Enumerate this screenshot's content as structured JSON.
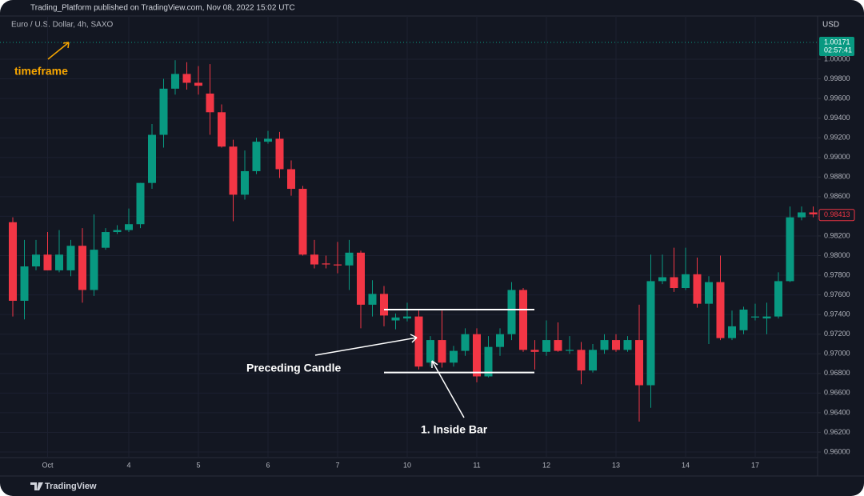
{
  "header": {
    "text": "Trading_Platform published on TradingView.com, Nov 08, 2022 15:02 UTC"
  },
  "footer": {
    "logo": "TradingView"
  },
  "chart_data": {
    "type": "candlestick",
    "symbol": "Euro / U.S. Dollar, 4h, SAXO",
    "currency": "USD",
    "up_color": "#089981",
    "down_color": "#f23645",
    "grid": true,
    "categories": [
      null,
      null,
      null,
      "Oct",
      null,
      null,
      null,
      null,
      null,
      null,
      "4",
      null,
      null,
      null,
      null,
      null,
      "5",
      null,
      null,
      null,
      null,
      null,
      "6",
      null,
      null,
      null,
      null,
      null,
      "7",
      null,
      null,
      null,
      null,
      null,
      "10",
      null,
      null,
      null,
      null,
      null,
      "11",
      null,
      null,
      null,
      null,
      null,
      "12",
      null,
      null,
      null,
      null,
      null,
      "13",
      null,
      null,
      null,
      null,
      null,
      "14",
      null,
      null,
      null,
      null,
      null,
      "17",
      null,
      null,
      null,
      null,
      null
    ],
    "open": [
      0.9834,
      0.9754,
      0.9789,
      0.9801,
      0.9785,
      0.9785,
      0.981,
      0.9765,
      0.9808,
      0.9824,
      0.9826,
      0.9832,
      0.9874,
      0.9923,
      0.997,
      0.9985,
      0.9976,
      0.9965,
      0.9946,
      0.9911,
      0.9862,
      0.9886,
      0.9916,
      0.9919,
      0.9888,
      0.9868,
      0.9801,
      0.9792,
      0.9791,
      0.979,
      0.9803,
      0.975,
      0.9761,
      0.9734,
      0.9736,
      0.9738,
      0.9691,
      0.9714,
      0.9691,
      0.9703,
      0.972,
      0.9677,
      0.9707,
      0.972,
      0.9765,
      0.9704,
      0.9702,
      0.9714,
      0.9703,
      0.9704,
      0.9683,
      0.9704,
      0.9714,
      0.9704,
      0.9714,
      0.9668,
      0.9774,
      0.9778,
      0.9767,
      0.9781,
      0.9751,
      0.9773,
      0.9716,
      0.9724,
      0.9737,
      0.9736,
      0.9738,
      0.9774,
      0.9839,
      0.9844
    ],
    "high": [
      0.9839,
      0.9816,
      0.9816,
      0.9824,
      0.9826,
      0.9816,
      0.9828,
      0.9842,
      0.9828,
      0.9831,
      0.9848,
      0.9874,
      0.9934,
      0.998,
      0.9999,
      0.9997,
      0.9993,
      0.9995,
      0.9954,
      0.9918,
      0.9907,
      0.992,
      0.9927,
      0.9926,
      0.9897,
      0.9871,
      0.9816,
      0.98,
      0.9814,
      0.9816,
      0.9805,
      0.9775,
      0.9769,
      0.9741,
      0.9752,
      0.9744,
      0.9718,
      0.9744,
      0.9708,
      0.9726,
      0.9726,
      0.9718,
      0.9726,
      0.9773,
      0.9767,
      0.9714,
      0.9734,
      0.9732,
      0.9718,
      0.9712,
      0.971,
      0.972,
      0.972,
      0.9718,
      0.975,
      0.9801,
      0.9801,
      0.9808,
      0.9808,
      0.9798,
      0.9779,
      0.98,
      0.9744,
      0.9748,
      0.9751,
      0.9752,
      0.9783,
      0.985,
      0.985,
      0.985
    ],
    "low": [
      0.9738,
      0.9735,
      0.9785,
      0.9785,
      0.9783,
      0.9779,
      0.9752,
      0.9759,
      0.9806,
      0.9822,
      0.9824,
      0.9828,
      0.9868,
      0.991,
      0.9964,
      0.9969,
      0.9964,
      0.9923,
      0.991,
      0.9835,
      0.9857,
      0.9883,
      0.9914,
      0.9879,
      0.9861,
      0.98,
      0.9787,
      0.9787,
      0.9782,
      0.9765,
      0.9726,
      0.9738,
      0.9728,
      0.9725,
      0.9733,
      0.9684,
      0.9687,
      0.9686,
      0.9687,
      0.9698,
      0.9671,
      0.9676,
      0.9698,
      0.9714,
      0.9702,
      0.9684,
      0.9698,
      0.9702,
      0.97,
      0.9669,
      0.9681,
      0.97,
      0.9702,
      0.9702,
      0.9631,
      0.9645,
      0.9771,
      0.9763,
      0.9765,
      0.9747,
      0.971,
      0.9714,
      0.9714,
      0.972,
      0.9734,
      0.972,
      0.9736,
      0.9773,
      0.9836,
      0.9839
    ],
    "close": [
      0.9754,
      0.9789,
      0.9801,
      0.9785,
      0.9801,
      0.981,
      0.9765,
      0.9806,
      0.9824,
      0.9826,
      0.9832,
      0.9874,
      0.9923,
      0.997,
      0.9985,
      0.9976,
      0.9973,
      0.9946,
      0.9911,
      0.9862,
      0.9886,
      0.9916,
      0.9919,
      0.9888,
      0.9868,
      0.9801,
      0.9791,
      0.9791,
      0.979,
      0.9803,
      0.975,
      0.9761,
      0.9739,
      0.9737,
      0.9738,
      0.9687,
      0.9714,
      0.9691,
      0.9703,
      0.972,
      0.9677,
      0.9707,
      0.972,
      0.9765,
      0.9704,
      0.9702,
      0.9714,
      0.9703,
      0.9704,
      0.9683,
      0.9704,
      0.9714,
      0.9704,
      0.9714,
      0.9668,
      0.9774,
      0.9778,
      0.9767,
      0.9781,
      0.9751,
      0.9773,
      0.9716,
      0.9728,
      0.9745,
      0.9738,
      0.9738,
      0.9774,
      0.9839,
      0.9844,
      0.9842
    ],
    "ylim": [
      0.95943,
      1.0044
    ],
    "yticks": [
      {
        "value": 1,
        "label": "1.00000"
      },
      {
        "value": 0.998,
        "label": "0.99800"
      },
      {
        "value": 0.996,
        "label": "0.99600"
      },
      {
        "value": 0.994,
        "label": "0.99400"
      },
      {
        "value": 0.992,
        "label": "0.99200"
      },
      {
        "value": 0.99,
        "label": "0.99000"
      },
      {
        "value": 0.988,
        "label": "0.98800"
      },
      {
        "value": 0.986,
        "label": "0.98600"
      },
      {
        "value": 0.984,
        "label": "0.98400"
      },
      {
        "value": 0.982,
        "label": "0.98200"
      },
      {
        "value": 0.98,
        "label": "0.98000"
      },
      {
        "value": 0.978,
        "label": "0.97800"
      },
      {
        "value": 0.976,
        "label": "0.97600"
      },
      {
        "value": 0.974,
        "label": "0.97400"
      },
      {
        "value": 0.972,
        "label": "0.97200"
      },
      {
        "value": 0.97,
        "label": "0.97000"
      },
      {
        "value": 0.968,
        "label": "0.96800"
      },
      {
        "value": 0.966,
        "label": "0.96600"
      },
      {
        "value": 0.964,
        "label": "0.96400"
      },
      {
        "value": 0.962,
        "label": "0.96200"
      },
      {
        "value": 0.96,
        "label": "0.96000"
      }
    ],
    "price_labels": [
      {
        "value": 1.00171,
        "label": "1.00171",
        "countdown": "02:57:41",
        "color": "#089981"
      },
      {
        "value": 0.98413,
        "label": "0.98413",
        "color": "#f23645"
      }
    ],
    "reference_lines": [
      0.9745,
      0.9681
    ],
    "annotations": [
      "timeframe",
      "Preceding Candle",
      "1. Inside Bar"
    ]
  }
}
